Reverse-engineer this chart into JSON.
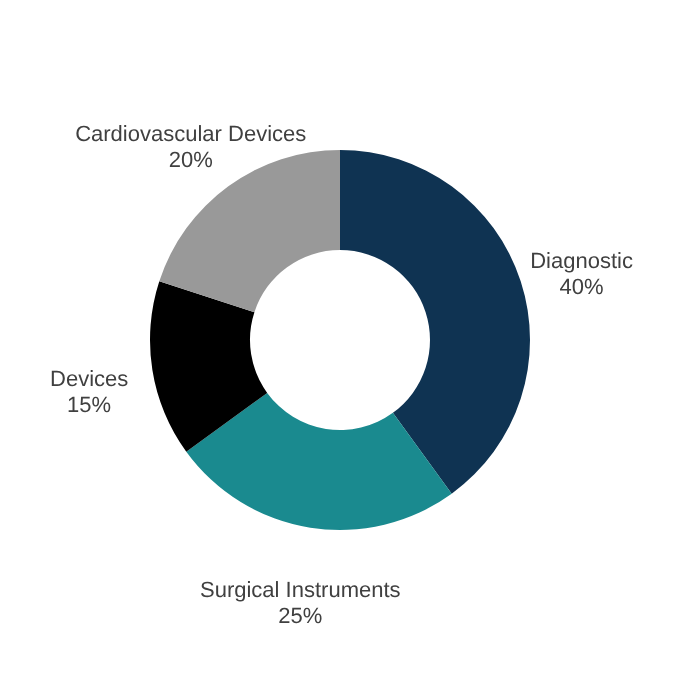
{
  "chart_data": {
    "type": "donut",
    "categories": [
      "Diagnostic",
      "Surgical Instruments",
      "Devices",
      "Cardiovascular Devices"
    ],
    "values": [
      40,
      25,
      15,
      20
    ],
    "colors": [
      "#0f3352",
      "#1a8a8f",
      "#000000",
      "#999999"
    ],
    "value_labels": [
      "40%",
      "25%",
      "15%",
      "20%"
    ],
    "legend": false
  }
}
